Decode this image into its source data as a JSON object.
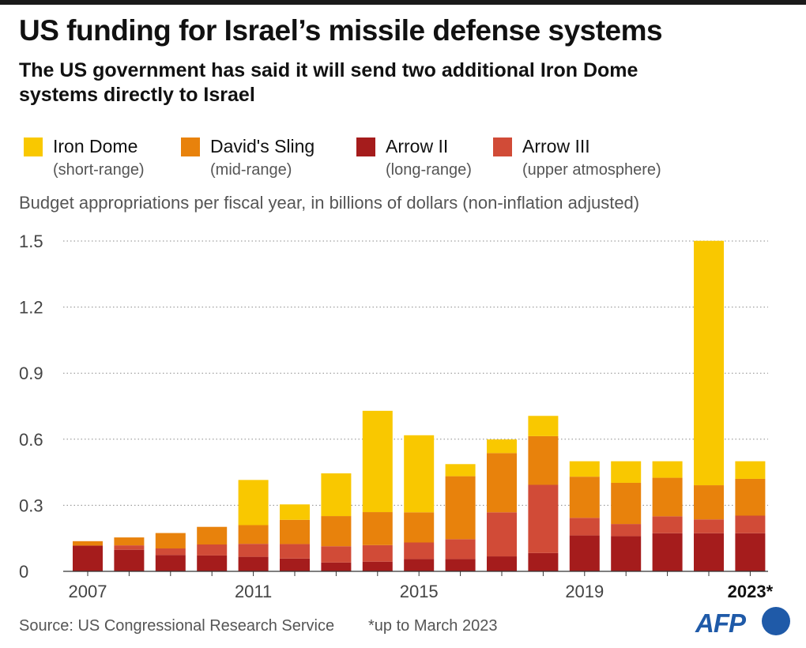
{
  "title": "US funding for Israel’s missile defense systems",
  "subtitle": "The US government has said it will send two additional Iron Dome systems directly to Israel",
  "unit_label": "Budget appropriations per fiscal year, in billions of dollars (non-inflation adjusted)",
  "source": "Source: US Congressional Research Service",
  "footnote": "*up to March 2023",
  "logo": "AFP",
  "chart_data": {
    "type": "bar",
    "stacked": true,
    "categories": [
      "2007",
      "2008",
      "2009",
      "2010",
      "2011",
      "2012",
      "2013",
      "2014",
      "2015",
      "2016",
      "2017",
      "2018",
      "2019",
      "2020",
      "2021",
      "2022",
      "2023*"
    ],
    "x_tick_labels": [
      "2007",
      "2011",
      "2015",
      "2019",
      "2023*"
    ],
    "y_ticks": [
      "0",
      "0.3",
      "0.6",
      "0.9",
      "1.2",
      "1.5"
    ],
    "ylim": [
      0,
      1.5
    ],
    "grid": "horizontal-dotted",
    "legend_position": "top",
    "series": [
      {
        "name": "Arrow II",
        "desc": "(long-range)",
        "color": "#a51c1c",
        "values": [
          0.117,
          0.098,
          0.074,
          0.072,
          0.066,
          0.058,
          0.04,
          0.044,
          0.056,
          0.056,
          0.068,
          0.083,
          0.163,
          0.16,
          0.173,
          0.173,
          0.173
        ]
      },
      {
        "name": "Arrow III",
        "desc": "(upper atmosphere)",
        "color": "#d14b37",
        "values": [
          0.0,
          0.02,
          0.03,
          0.05,
          0.059,
          0.066,
          0.074,
          0.075,
          0.075,
          0.09,
          0.2,
          0.31,
          0.08,
          0.055,
          0.077,
          0.063,
          0.08
        ]
      },
      {
        "name": "David's Sling",
        "desc": "(mid-range)",
        "color": "#e8820c",
        "values": [
          0.02,
          0.036,
          0.07,
          0.08,
          0.085,
          0.11,
          0.137,
          0.15,
          0.137,
          0.286,
          0.269,
          0.221,
          0.187,
          0.187,
          0.175,
          0.155,
          0.167
        ]
      },
      {
        "name": "Iron Dome",
        "desc": "(short-range)",
        "color": "#f9c800",
        "values": [
          0.0,
          0.0,
          0.0,
          0.0,
          0.205,
          0.07,
          0.194,
          0.46,
          0.35,
          0.055,
          0.062,
          0.092,
          0.07,
          0.098,
          0.075,
          1.11,
          0.08
        ]
      }
    ]
  }
}
